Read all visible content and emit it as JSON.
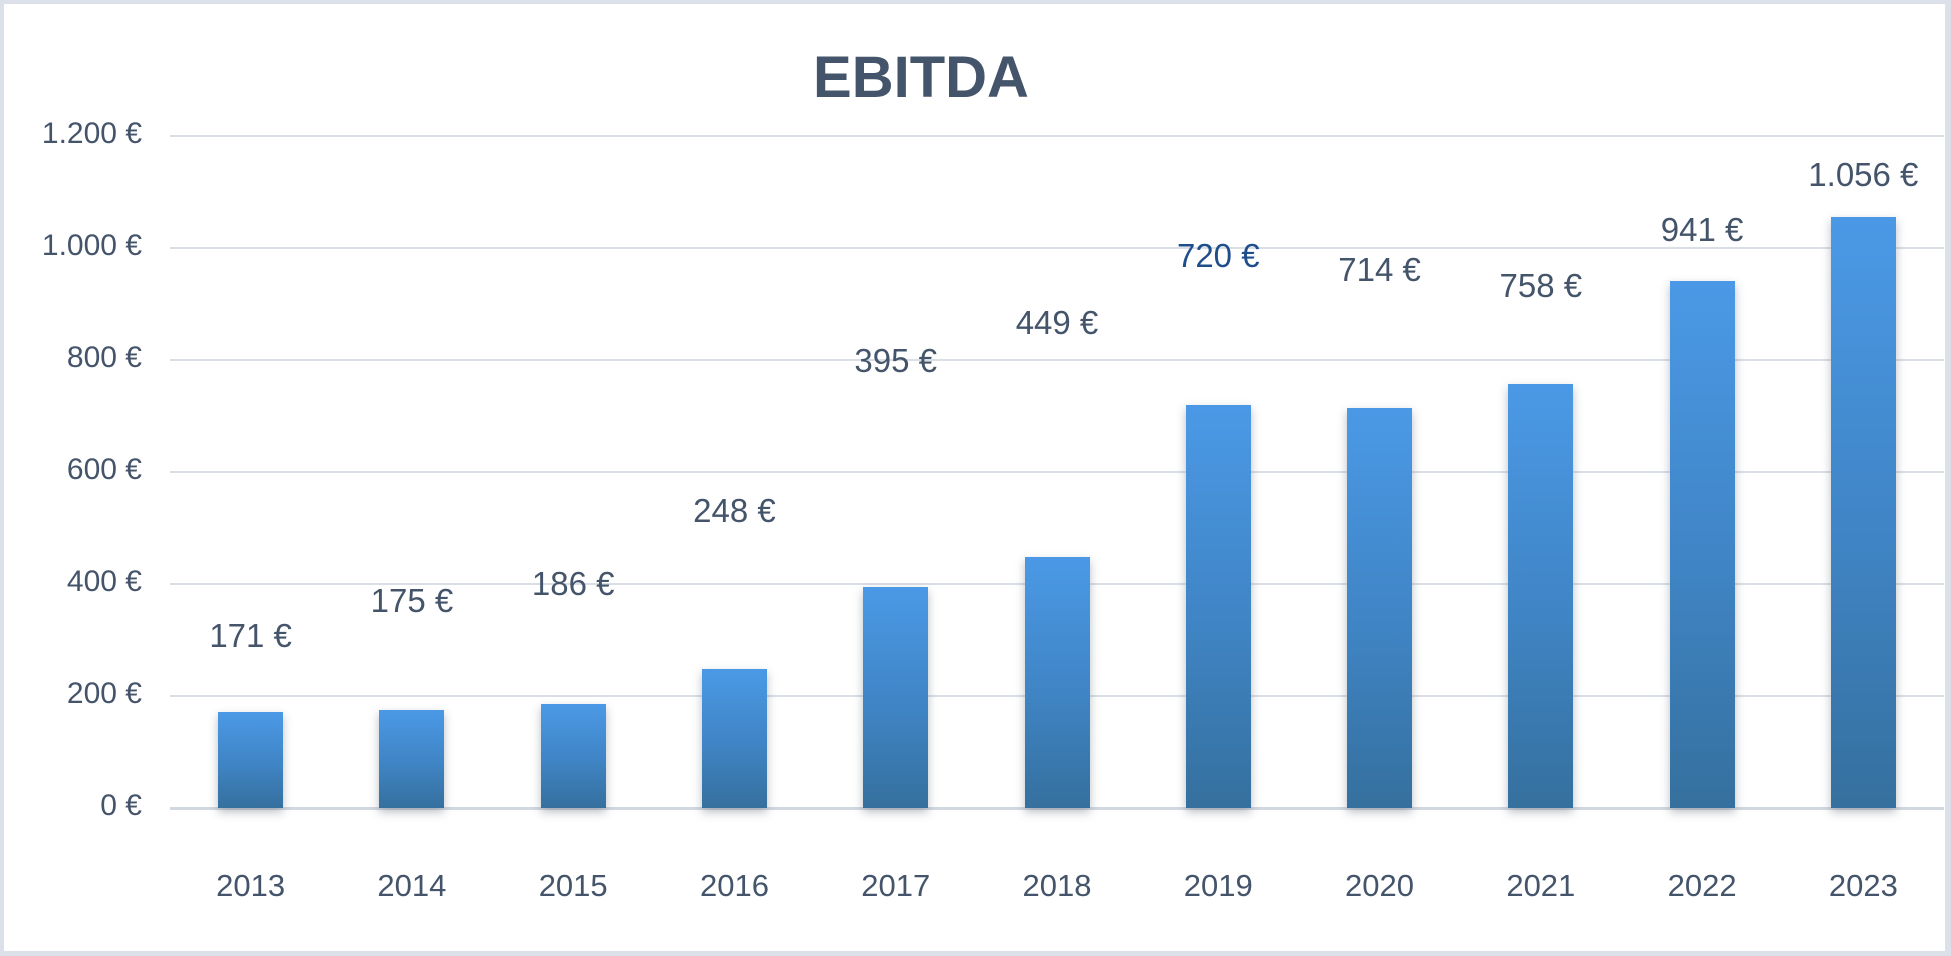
{
  "frame": {
    "outer_background": "#DCE1E9",
    "card_background": "#FFFFFF"
  },
  "chart_data": {
    "type": "bar",
    "title": "EBITDA",
    "xlabel": "",
    "ylabel": "",
    "categories": [
      "2013",
      "2014",
      "2015",
      "2016",
      "2017",
      "2018",
      "2019",
      "2020",
      "2021",
      "2022",
      "2023"
    ],
    "values": [
      171,
      175,
      186,
      248,
      395,
      449,
      720,
      714,
      758,
      941,
      1056
    ],
    "data_labels": [
      "171 €",
      "175 €",
      "186 €",
      "248 €",
      "395 €",
      "449 €",
      "720 €",
      "714 €",
      "758 €",
      "941 €",
      "1.056 €"
    ],
    "ylim": [
      0,
      1200
    ],
    "ytick_step": 200,
    "yticks": [
      {
        "value": 1200,
        "label": "1.200 €"
      },
      {
        "value": 1000,
        "label": "1.000 €"
      },
      {
        "value": 800,
        "label": "800 €"
      },
      {
        "value": 600,
        "label": "600 €"
      },
      {
        "value": 400,
        "label": "400 €"
      },
      {
        "value": 200,
        "label": "200 €"
      },
      {
        "value": 0,
        "label": "0 €"
      }
    ],
    "grid": true,
    "legend": "none",
    "colors": {
      "bar_top": "#4B99E6",
      "bar_bottom": "#35709E",
      "text": "#44546A",
      "gridline": "#DADFE6",
      "label_default": "#44546A",
      "label_highlight": "#1F4E8C"
    },
    "label_layout": {
      "centers_y": [
        633,
        598,
        581,
        508,
        358,
        320,
        253,
        267,
        283,
        227,
        172
      ],
      "color_overrides": {
        "6": "#1F4E8C"
      }
    }
  }
}
